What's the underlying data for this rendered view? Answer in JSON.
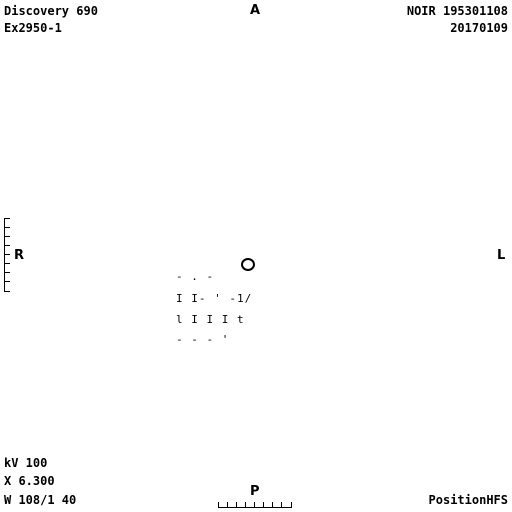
{
  "overlay": {
    "top_left_line1": "Discovery 690",
    "top_left_line2": "Ex2950-1",
    "top_right_line1": "NOIR 195301108",
    "top_right_line2": "20170109",
    "bottom_left_line1": "kV 100",
    "bottom_left_line2": "X 6.300",
    "bottom_left_line3": "W 108/1 40",
    "bottom_right": "PositionHFS"
  },
  "orientation": {
    "top": "A",
    "bottom": "P",
    "left": "R",
    "right": "L"
  },
  "image_fragments": {
    "line1": "- .  -",
    "line2": "I I-  ' -1/",
    "line3": "l I I I  t",
    "line4": "- -    -  '"
  }
}
